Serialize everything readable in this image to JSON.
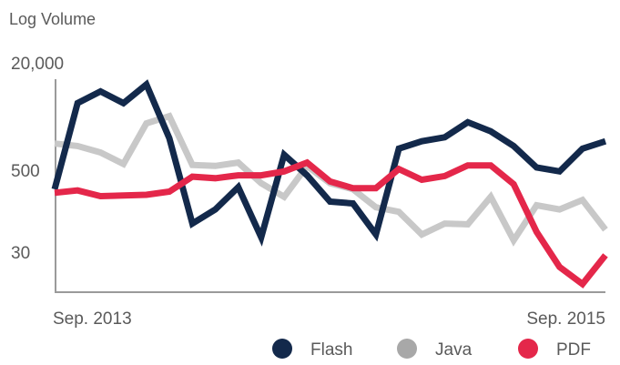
{
  "chart_data": {
    "type": "line",
    "ylabel": "Log Volume",
    "yscale": "log",
    "y_ticks": [
      {
        "value": 20000,
        "label": "20,000"
      },
      {
        "value": 500,
        "label": "500"
      },
      {
        "value": 30,
        "label": "30"
      }
    ],
    "ylim": [
      10,
      40000
    ],
    "x_tick_labels": [
      "Sep. 2013",
      "Sep. 2015"
    ],
    "x": [
      0,
      1,
      2,
      3,
      4,
      5,
      6,
      7,
      8,
      9,
      10,
      11,
      12,
      13,
      14,
      15,
      16,
      17,
      18,
      19,
      20,
      21,
      22,
      23,
      24
    ],
    "grid": false,
    "legend_position": "bottom-right",
    "series": [
      {
        "name": "Flash",
        "color": "#13294b",
        "values": [
          260,
          5000,
          7500,
          5000,
          9500,
          1500,
          80,
          130,
          280,
          50,
          850,
          420,
          170,
          160,
          55,
          1050,
          1350,
          1550,
          2600,
          1900,
          1150,
          550,
          480,
          1050,
          1350
        ]
      },
      {
        "name": "Java",
        "color": "#c8c8c8",
        "values": [
          1250,
          1150,
          920,
          620,
          2500,
          3200,
          600,
          580,
          650,
          320,
          200,
          580,
          320,
          260,
          140,
          120,
          55,
          80,
          78,
          200,
          45,
          150,
          130,
          180,
          65
        ]
      },
      {
        "name": "PDF",
        "color": "#e4274a",
        "values": [
          230,
          250,
          205,
          210,
          215,
          240,
          400,
          380,
          420,
          420,
          480,
          650,
          340,
          270,
          270,
          520,
          360,
          410,
          590,
          590,
          310,
          60,
          18,
          10,
          27
        ]
      }
    ]
  }
}
